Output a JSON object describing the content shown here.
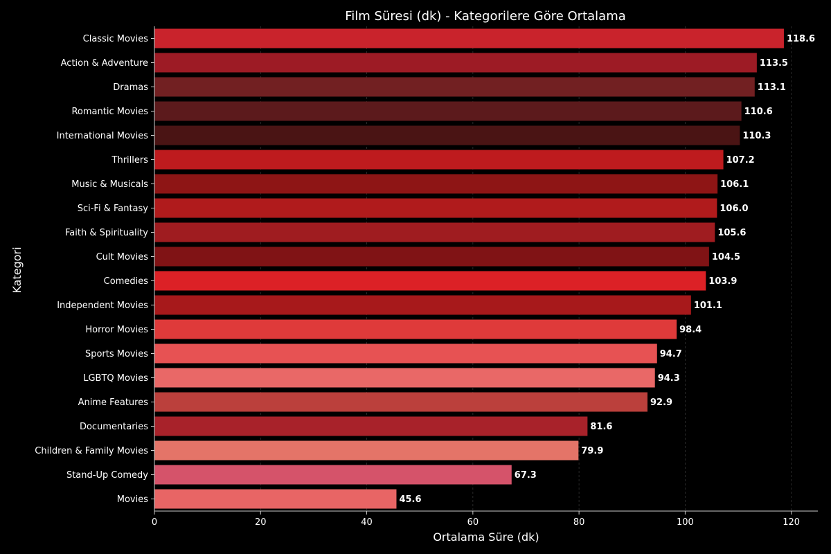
{
  "chart_data": {
    "type": "bar",
    "orientation": "horizontal",
    "title": "Film Süresi (dk) - Kategorilere Göre Ortalama",
    "xlabel": "Ortalama Süre (dk)",
    "ylabel": "Kategori",
    "xlim": [
      0,
      125
    ],
    "xticks": [
      0,
      20,
      40,
      60,
      80,
      100,
      120
    ],
    "xtick_labels": [
      "0",
      "20",
      "40",
      "60",
      "80",
      "100",
      "120"
    ],
    "grid": "x-axis dashed",
    "categories": [
      "Classic Movies",
      "Action & Adventure",
      "Dramas",
      "Romantic Movies",
      "International Movies",
      "Thrillers",
      "Music & Musicals",
      "Sci-Fi & Fantasy",
      "Faith & Spirituality",
      "Cult Movies",
      "Comedies",
      "Independent Movies",
      "Horror Movies",
      "Sports Movies",
      "LGBTQ Movies",
      "Anime Features",
      "Documentaries",
      "Children & Family Movies",
      "Stand-Up Comedy",
      "Movies"
    ],
    "values": [
      118.6,
      113.5,
      113.1,
      110.6,
      110.3,
      107.2,
      106.1,
      106.0,
      105.6,
      104.5,
      103.9,
      101.1,
      98.4,
      94.7,
      94.3,
      92.9,
      81.6,
      79.9,
      67.3,
      45.6
    ],
    "value_labels": [
      "118.6",
      "113.5",
      "113.1",
      "110.6",
      "110.3",
      "107.2",
      "106.1",
      "106.0",
      "105.6",
      "104.5",
      "103.9",
      "101.1",
      "98.4",
      "94.7",
      "94.3",
      "92.9",
      "81.6",
      "79.9",
      "67.3",
      "45.6"
    ],
    "colors": [
      "#c9232c",
      "#9d1b25",
      "#722022",
      "#5c1a1c",
      "#4a1414",
      "#be1b1e",
      "#8e1515",
      "#b01b1c",
      "#9f1c20",
      "#801315",
      "#dc2126",
      "#a7191b",
      "#df3a3a",
      "#e75253",
      "#e96867",
      "#bb403c",
      "#a8222a",
      "#e47468",
      "#d5536a",
      "#e86565"
    ],
    "background": "#000000"
  }
}
